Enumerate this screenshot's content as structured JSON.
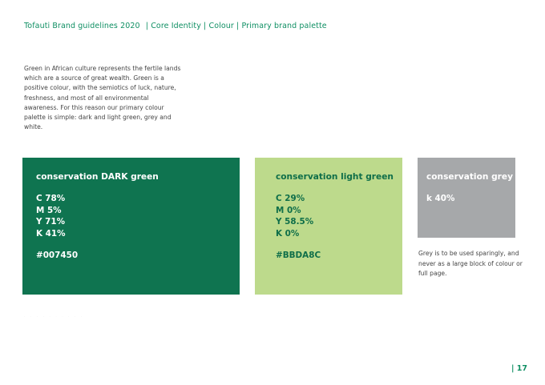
{
  "header": {
    "brand": "Tofauti Brand guidelines 2020",
    "crumbs": [
      "| Core Identity",
      "| Colour",
      "| Primary brand palette"
    ]
  },
  "intro": "Green in African culture represents the fertile lands which are a source of great wealth. Green is a positive colour, with the semiotics of luck, nature, freshness, and most of all environmental awareness. For this reason our primary colour palette is simple: dark and light green, grey and white.",
  "swatches": {
    "dark": {
      "title": "conservation DARK green",
      "values": [
        "C 78%",
        "M 5%",
        "Y 71%",
        "K 41%"
      ],
      "hex": "#007450",
      "color": "#0f7450"
    },
    "light": {
      "title": "conservation light green",
      "values": [
        "C 29%",
        "M 0%",
        "Y 58.5%",
        "K 0%"
      ],
      "hex": "#BBDA8C",
      "color": "#bdda8c"
    },
    "grey": {
      "title": "conservation grey",
      "values": [
        "k 40%"
      ],
      "color": "#a6a8aa"
    }
  },
  "grey_note": "Grey is to be used sparingly, and never as a large block of colour or full page.",
  "faint_text": "· · · · · · · · · ·",
  "page_number": "| 17",
  "accent_color": "#0f8f63"
}
